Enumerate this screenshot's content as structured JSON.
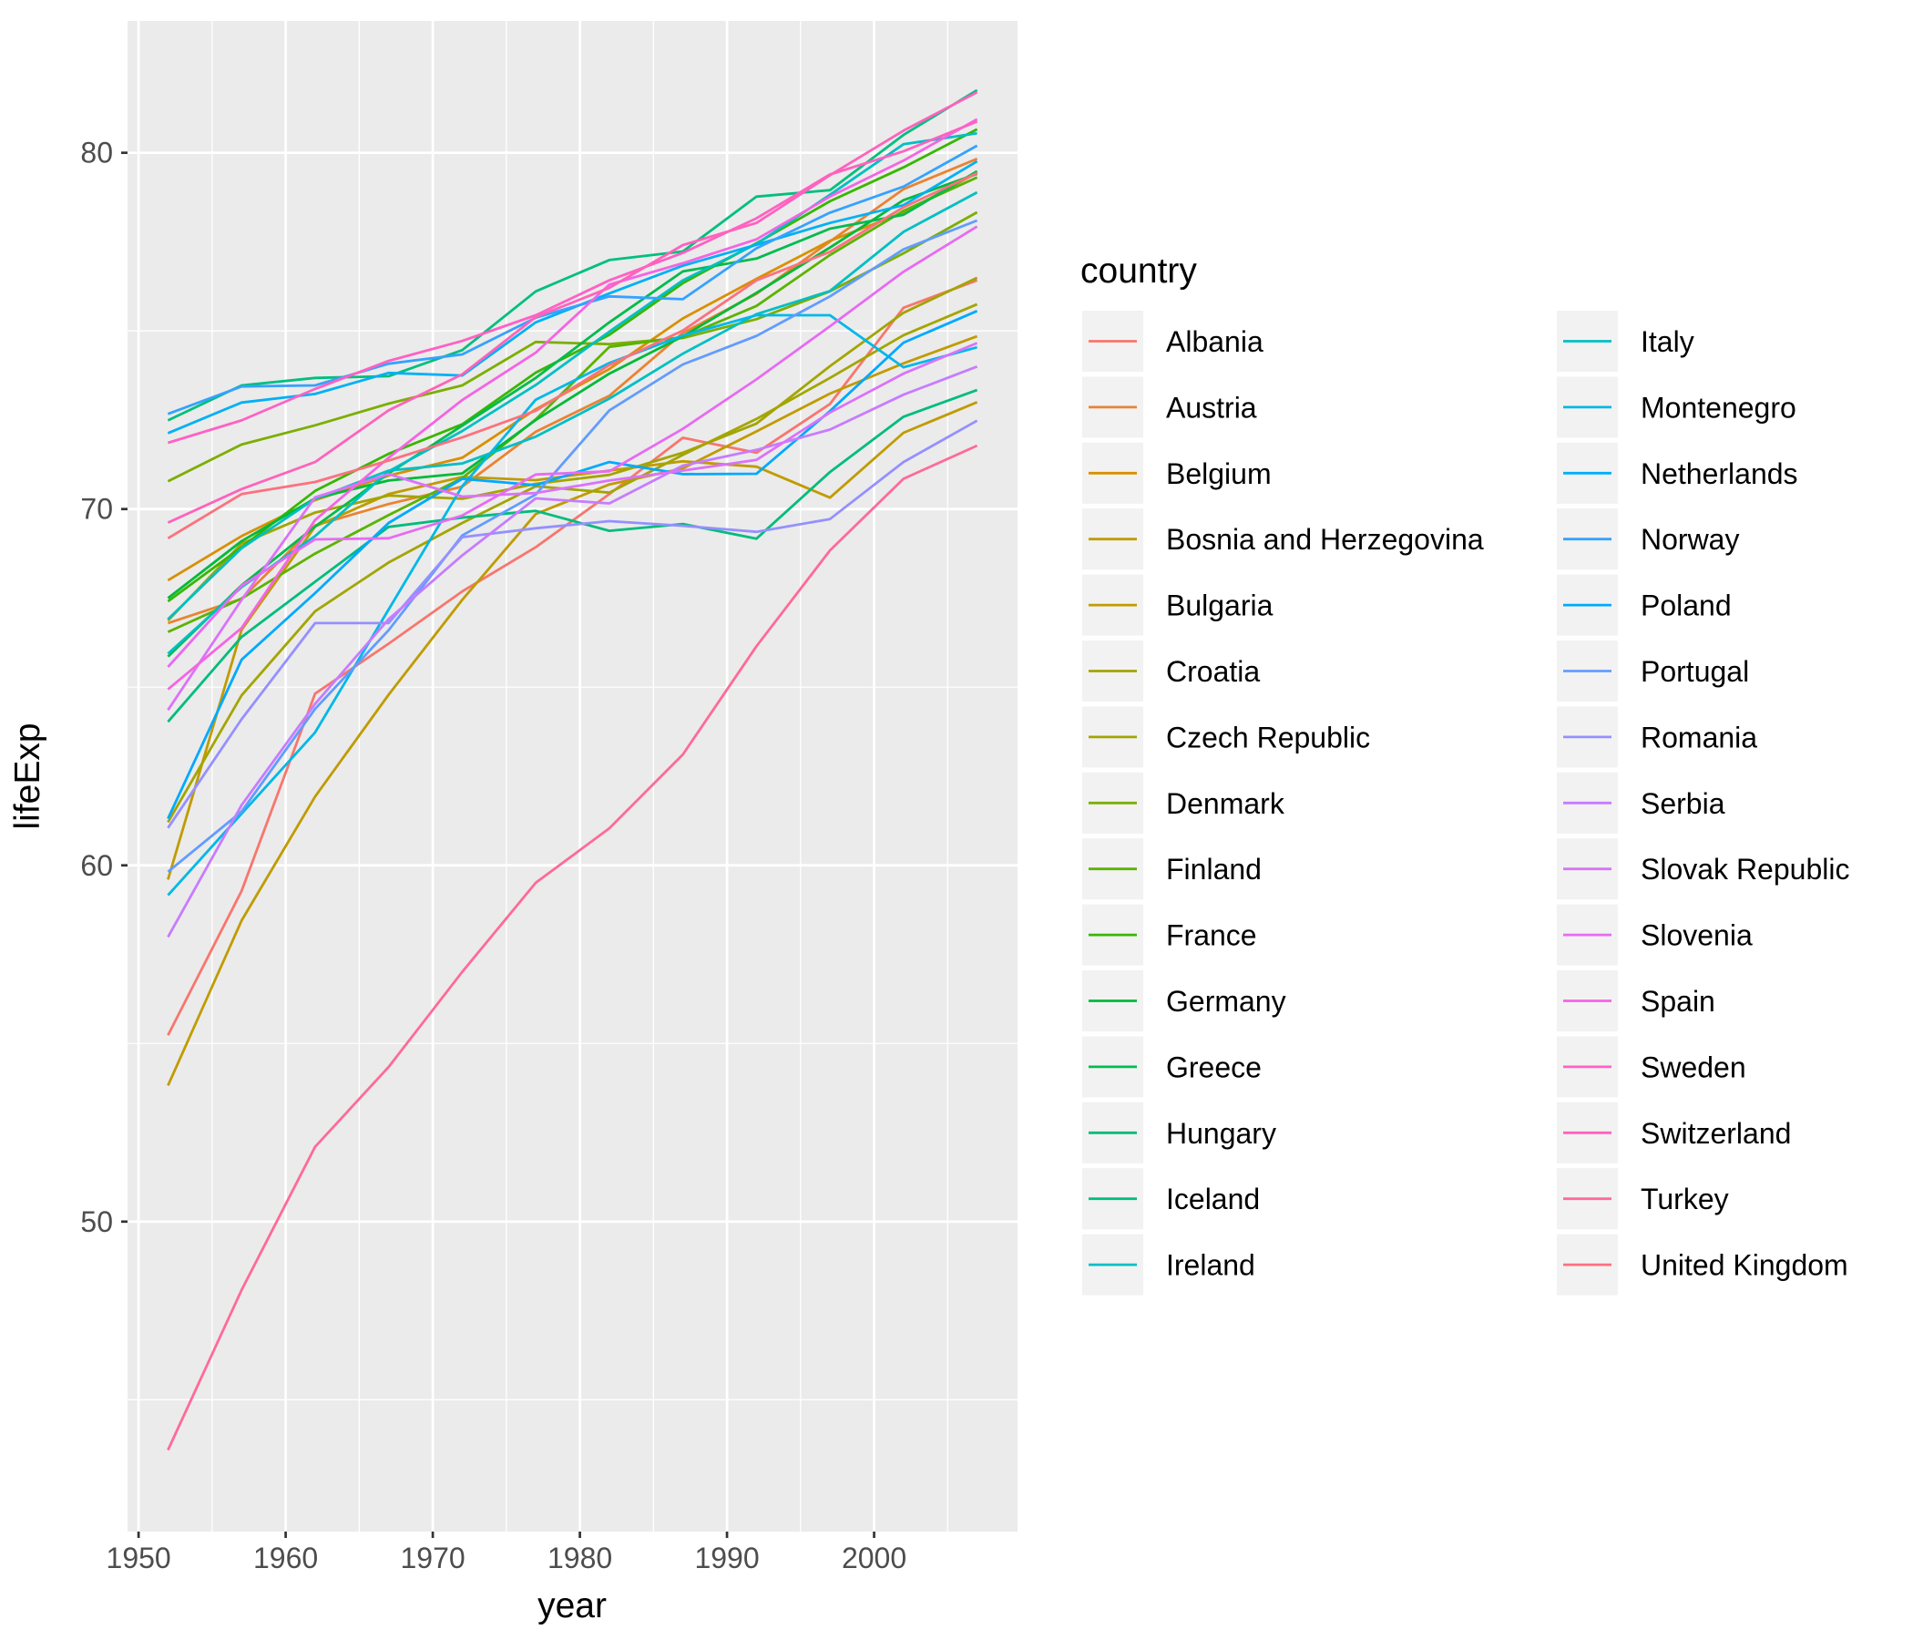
{
  "chart_data": {
    "type": "line",
    "xlabel": "year",
    "ylabel": "lifeExp",
    "xlim": [
      1949.25,
      2009.75
    ],
    "ylim": [
      41.3,
      83.7
    ],
    "x_ticks": [
      1950,
      1960,
      1970,
      1980,
      1990,
      2000
    ],
    "y_ticks": [
      50,
      60,
      70,
      80
    ],
    "grid": true,
    "legend_title": "country",
    "legend_position": "right",
    "x": [
      1952,
      1957,
      1962,
      1967,
      1972,
      1977,
      1982,
      1987,
      1992,
      1997,
      2002,
      2007
    ],
    "series": [
      {
        "name": "Albania",
        "color": "#F8766D",
        "values": [
          55.23,
          59.28,
          64.82,
          66.22,
          67.69,
          68.93,
          70.42,
          72.0,
          71.58,
          72.95,
          75.65,
          76.42
        ]
      },
      {
        "name": "Austria",
        "color": "#EA8331",
        "values": [
          66.8,
          67.48,
          69.54,
          70.14,
          70.63,
          72.17,
          73.18,
          74.94,
          76.04,
          77.51,
          78.98,
          79.83
        ]
      },
      {
        "name": "Belgium",
        "color": "#D89000",
        "values": [
          68.0,
          69.24,
          70.25,
          70.94,
          71.44,
          72.8,
          73.93,
          75.35,
          76.46,
          77.53,
          78.32,
          79.44
        ]
      },
      {
        "name": "Bosnia and Herzegovina",
        "color": "#C09B00",
        "values": [
          53.82,
          58.45,
          61.93,
          64.79,
          67.45,
          69.86,
          70.69,
          71.14,
          72.18,
          73.24,
          74.09,
          74.85
        ]
      },
      {
        "name": "Bulgaria",
        "color": "#C09B00",
        "values": [
          59.6,
          66.61,
          69.51,
          70.42,
          70.9,
          70.81,
          71.08,
          71.34,
          71.19,
          70.32,
          72.14,
          73.0
        ]
      },
      {
        "name": "Croatia",
        "color": "#A3A500",
        "values": [
          61.21,
          64.77,
          67.13,
          68.5,
          69.61,
          70.64,
          70.46,
          71.52,
          72.53,
          73.68,
          74.88,
          75.75
        ]
      },
      {
        "name": "Czech Republic",
        "color": "#A3A500",
        "values": [
          66.87,
          69.03,
          69.9,
          70.38,
          70.29,
          70.71,
          70.96,
          71.58,
          72.4,
          74.01,
          75.51,
          76.49
        ]
      },
      {
        "name": "Denmark",
        "color": "#7CAE00",
        "values": [
          70.78,
          71.81,
          72.35,
          72.96,
          73.47,
          74.69,
          74.63,
          74.8,
          75.33,
          76.11,
          77.18,
          78.33
        ]
      },
      {
        "name": "Finland",
        "color": "#5BB300",
        "values": [
          66.55,
          67.49,
          68.75,
          69.83,
          70.87,
          72.52,
          74.55,
          74.83,
          75.7,
          77.13,
          78.37,
          79.31
        ]
      },
      {
        "name": "France",
        "color": "#39B600",
        "values": [
          67.41,
          68.93,
          70.51,
          71.55,
          72.38,
          73.83,
          74.89,
          76.34,
          77.46,
          78.64,
          79.59,
          80.66
        ]
      },
      {
        "name": "Germany",
        "color": "#00BA38",
        "values": [
          67.5,
          69.1,
          70.3,
          70.8,
          71.0,
          72.5,
          73.8,
          74.85,
          76.07,
          77.34,
          78.67,
          79.41
        ]
      },
      {
        "name": "Greece",
        "color": "#00BB4E",
        "values": [
          65.86,
          67.86,
          69.51,
          71.0,
          72.34,
          73.68,
          75.24,
          76.67,
          77.03,
          77.87,
          78.26,
          79.48
        ]
      },
      {
        "name": "Hungary",
        "color": "#00BC7D",
        "values": [
          64.03,
          66.41,
          67.96,
          69.5,
          69.76,
          69.95,
          69.39,
          69.58,
          69.17,
          71.04,
          72.59,
          73.34
        ]
      },
      {
        "name": "Iceland",
        "color": "#00BF7D",
        "values": [
          72.49,
          73.47,
          73.68,
          73.73,
          74.46,
          76.11,
          76.99,
          77.23,
          78.77,
          78.95,
          80.5,
          81.76
        ]
      },
      {
        "name": "Ireland",
        "color": "#00BFC4",
        "values": [
          66.91,
          68.9,
          70.29,
          71.08,
          71.28,
          72.03,
          73.1,
          74.36,
          75.47,
          76.12,
          77.78,
          78.89
        ]
      },
      {
        "name": "Italy",
        "color": "#00BFC4",
        "values": [
          65.94,
          67.81,
          69.24,
          71.06,
          72.19,
          73.48,
          74.98,
          76.42,
          77.44,
          78.82,
          80.24,
          80.55
        ]
      },
      {
        "name": "Montenegro",
        "color": "#00B8E7",
        "values": [
          59.16,
          61.45,
          63.73,
          67.18,
          70.64,
          73.07,
          74.1,
          74.87,
          75.44,
          75.44,
          73.98,
          74.54
        ]
      },
      {
        "name": "Netherlands",
        "color": "#00B0F6",
        "values": [
          72.13,
          72.99,
          73.23,
          73.82,
          73.75,
          75.24,
          76.05,
          76.83,
          77.42,
          78.03,
          78.53,
          79.76
        ]
      },
      {
        "name": "Norway",
        "color": "#35A2FF",
        "values": [
          72.67,
          73.44,
          73.47,
          74.08,
          74.34,
          75.37,
          75.97,
          75.89,
          77.32,
          78.32,
          79.05,
          80.2
        ]
      },
      {
        "name": "Poland",
        "color": "#00A9FF",
        "values": [
          61.31,
          65.77,
          67.64,
          69.61,
          70.85,
          70.67,
          71.32,
          70.98,
          70.99,
          72.75,
          74.67,
          75.56
        ]
      },
      {
        "name": "Portugal",
        "color": "#619CFF",
        "values": [
          59.82,
          61.51,
          64.39,
          66.6,
          69.26,
          70.41,
          72.77,
          74.06,
          74.86,
          75.97,
          77.29,
          78.1
        ]
      },
      {
        "name": "Romania",
        "color": "#9590FF",
        "values": [
          61.05,
          64.1,
          66.8,
          66.8,
          69.21,
          69.46,
          69.66,
          69.53,
          69.36,
          69.72,
          71.32,
          72.48
        ]
      },
      {
        "name": "Serbia",
        "color": "#C77CFF",
        "values": [
          57.99,
          61.69,
          64.53,
          66.91,
          68.7,
          70.3,
          70.16,
          71.22,
          71.66,
          72.23,
          73.21,
          74.0
        ]
      },
      {
        "name": "Slovak Republic",
        "color": "#DB72FB",
        "values": [
          64.36,
          67.45,
          70.33,
          70.98,
          70.35,
          70.45,
          70.8,
          71.08,
          71.38,
          72.71,
          73.8,
          74.66
        ]
      },
      {
        "name": "Slovenia",
        "color": "#E76BF3",
        "values": [
          65.57,
          67.85,
          69.15,
          69.18,
          69.82,
          70.97,
          71.06,
          72.25,
          73.64,
          75.13,
          76.66,
          77.93
        ]
      },
      {
        "name": "Spain",
        "color": "#F564E3",
        "values": [
          64.94,
          66.66,
          69.69,
          71.44,
          73.06,
          74.39,
          76.3,
          76.9,
          77.57,
          78.77,
          79.78,
          80.94
        ]
      },
      {
        "name": "Sweden",
        "color": "#FF61C3",
        "values": [
          71.86,
          72.49,
          73.37,
          74.16,
          74.72,
          75.44,
          76.42,
          77.19,
          78.16,
          79.39,
          80.04,
          80.88
        ]
      },
      {
        "name": "Switzerland",
        "color": "#FF62BC",
        "values": [
          69.62,
          70.56,
          71.32,
          72.77,
          73.78,
          75.39,
          76.21,
          77.41,
          78.03,
          79.37,
          80.62,
          81.7
        ]
      },
      {
        "name": "Turkey",
        "color": "#FF6A98",
        "values": [
          43.59,
          48.08,
          52.1,
          54.34,
          57.01,
          59.51,
          61.04,
          63.11,
          66.15,
          68.84,
          70.85,
          71.78
        ]
      },
      {
        "name": "United Kingdom",
        "color": "#FC717F",
        "values": [
          69.18,
          70.42,
          70.76,
          71.36,
          72.01,
          72.76,
          74.04,
          75.01,
          76.42,
          77.22,
          78.47,
          79.43
        ]
      }
    ]
  }
}
